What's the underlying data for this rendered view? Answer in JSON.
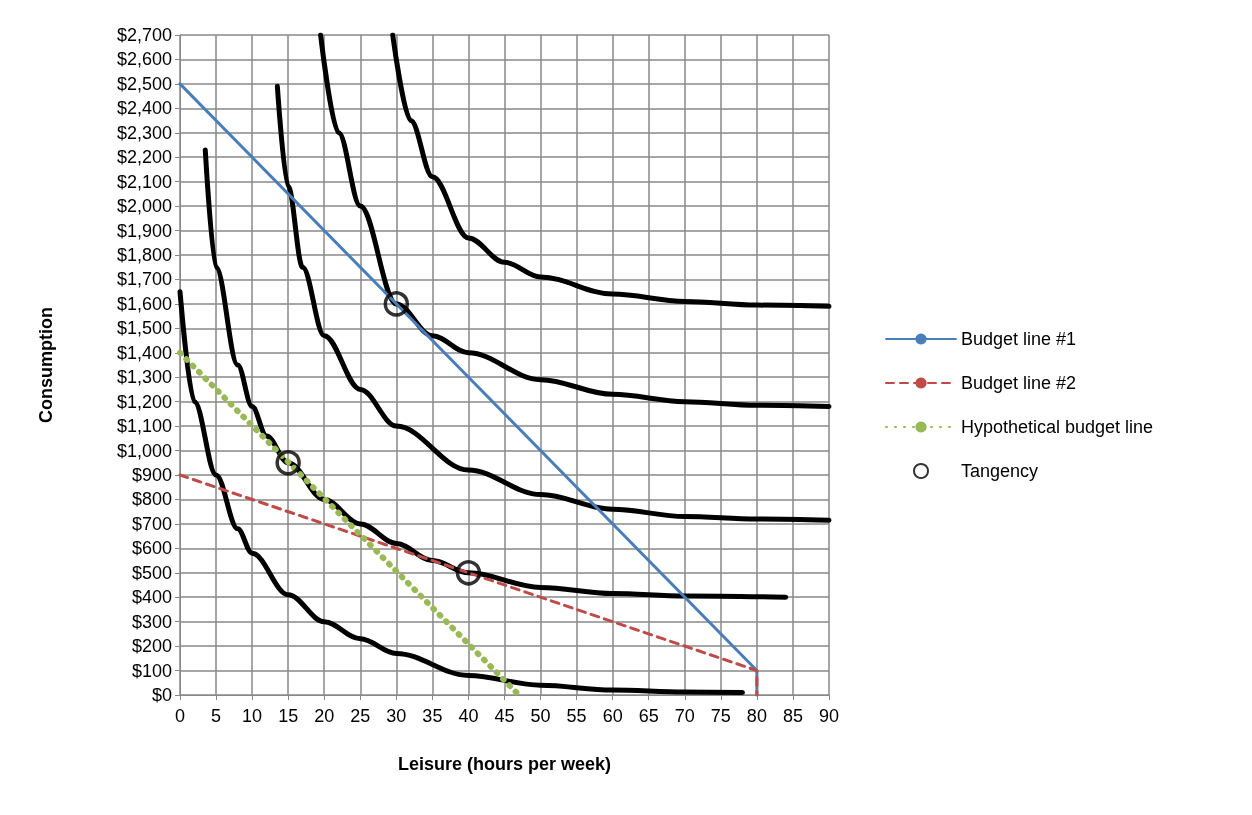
{
  "chart_data": {
    "type": "line",
    "xlabel": "Leisure (hours per week)",
    "ylabel": "Consumption",
    "xlim": [
      0,
      90
    ],
    "ylim": [
      0,
      2700
    ],
    "xticks": [
      0,
      5,
      10,
      15,
      20,
      25,
      30,
      35,
      40,
      45,
      50,
      55,
      60,
      65,
      70,
      75,
      80,
      85,
      90
    ],
    "yticks": [
      {
        "value": 0,
        "label": "$0"
      },
      {
        "value": 100,
        "label": "$100"
      },
      {
        "value": 200,
        "label": "$200"
      },
      {
        "value": 300,
        "label": "$300"
      },
      {
        "value": 400,
        "label": "$400"
      },
      {
        "value": 500,
        "label": "$500"
      },
      {
        "value": 600,
        "label": "$600"
      },
      {
        "value": 700,
        "label": "$700"
      },
      {
        "value": 800,
        "label": "$800"
      },
      {
        "value": 900,
        "label": "$900"
      },
      {
        "value": 1000,
        "label": "$1,000"
      },
      {
        "value": 1100,
        "label": "$1,100"
      },
      {
        "value": 1200,
        "label": "$1,200"
      },
      {
        "value": 1300,
        "label": "$1,300"
      },
      {
        "value": 1400,
        "label": "$1,400"
      },
      {
        "value": 1500,
        "label": "$1,500"
      },
      {
        "value": 1600,
        "label": "$1,600"
      },
      {
        "value": 1700,
        "label": "$1,700"
      },
      {
        "value": 1800,
        "label": "$1,800"
      },
      {
        "value": 1900,
        "label": "$1,900"
      },
      {
        "value": 2000,
        "label": "$2,000"
      },
      {
        "value": 2100,
        "label": "$2,100"
      },
      {
        "value": 2200,
        "label": "$2,200"
      },
      {
        "value": 2300,
        "label": "$2,300"
      },
      {
        "value": 2400,
        "label": "$2,400"
      },
      {
        "value": 2500,
        "label": "$2,500"
      },
      {
        "value": 2600,
        "label": "$2,600"
      },
      {
        "value": 2700,
        "label": "$2,700"
      }
    ],
    "grid": true,
    "legend": "right",
    "marker": "none",
    "line_style": "solid",
    "series": [
      {
        "color": "#000000",
        "x": [
          0,
          2,
          5,
          8,
          10,
          15,
          20,
          25,
          30,
          40,
          50,
          60,
          70,
          78
        ],
        "values": [
          1650,
          1200,
          900,
          680,
          580,
          410,
          300,
          230,
          170,
          80,
          40,
          20,
          12,
          10
        ]
      },
      {
        "color": "#000000",
        "x": [
          3.5,
          5,
          8,
          10,
          12,
          15,
          20,
          25,
          30,
          35,
          40,
          50,
          60,
          70,
          84
        ],
        "values": [
          2230,
          1750,
          1350,
          1180,
          1060,
          950,
          800,
          700,
          620,
          550,
          500,
          440,
          415,
          405,
          400
        ]
      },
      {
        "color": "#000000",
        "x": [
          13.5,
          15,
          17,
          20,
          25,
          30,
          40,
          50,
          60,
          70,
          80,
          90
        ],
        "values": [
          2490,
          2080,
          1750,
          1470,
          1250,
          1100,
          920,
          820,
          760,
          730,
          720,
          715
        ]
      },
      {
        "color": "#000000",
        "x": [
          19.5,
          22,
          25,
          30,
          35,
          40,
          50,
          60,
          70,
          80,
          90
        ],
        "values": [
          2700,
          2300,
          2000,
          1600,
          1470,
          1400,
          1290,
          1230,
          1200,
          1185,
          1180
        ]
      },
      {
        "color": "#000000",
        "x": [
          29.5,
          32,
          35,
          40,
          45,
          50,
          60,
          70,
          80,
          90
        ],
        "values": [
          2700,
          2350,
          2120,
          1870,
          1770,
          1710,
          1640,
          1610,
          1595,
          1590
        ]
      },
      {
        "name": "Budget line #1",
        "color": "#4a7ebb",
        "x": [
          0,
          80,
          80
        ],
        "values": [
          2500,
          100,
          0
        ]
      },
      {
        "name": "Budget line #2",
        "color": "#be4b48",
        "line_style": "dashed",
        "x": [
          0,
          80,
          80
        ],
        "values": [
          900,
          100,
          0
        ]
      },
      {
        "name": "Hypothetical budget line",
        "color": "#98b954",
        "line_style": "dotted",
        "x": [
          0,
          47
        ],
        "values": [
          1400,
          0
        ]
      },
      {
        "name": "Tangency",
        "type": "scatter",
        "marker": "circle",
        "color": "#000000",
        "x": [
          30,
          15,
          40
        ],
        "values": [
          1600,
          950,
          500
        ]
      }
    ]
  }
}
